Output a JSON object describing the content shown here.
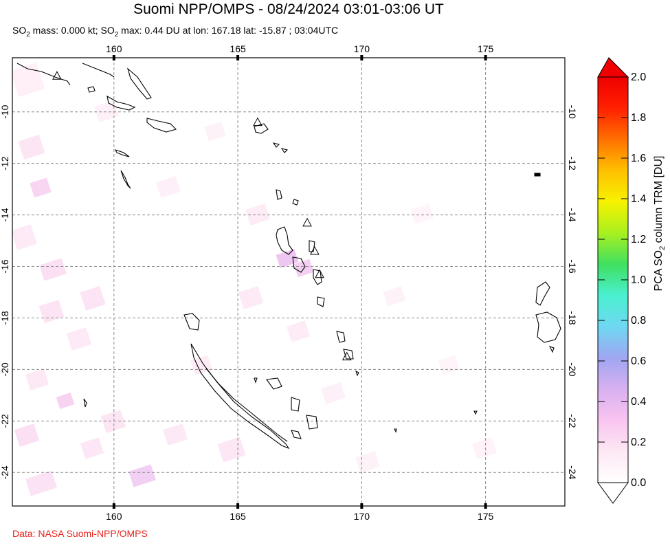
{
  "title": "Suomi NPP/OMPS - 08/24/2024 03:01-03:06 UT",
  "subtitle": {
    "mass_prefix": "SO",
    "mass_sub": "2",
    "mass_text": " mass: 0.000 kt; SO",
    "max_sub": "2",
    "max_text": " max: 0.44 DU at lon: 167.18 lat: -15.87 ; 03:04UTC"
  },
  "credit": "Data: NASA Suomi-NPP/OMPS",
  "map": {
    "lon_ticks": [
      "160",
      "165",
      "170",
      "175"
    ],
    "lat_ticks": [
      "-10",
      "-12",
      "-14",
      "-16",
      "-18",
      "-20",
      "-22",
      "-24"
    ],
    "lon_values": [
      160,
      165,
      170,
      175
    ],
    "lat_values": [
      -10,
      -12,
      -14,
      -16,
      -18,
      -20,
      -22,
      -24
    ],
    "lon_range": [
      155.9,
      178.2
    ],
    "lat_range": [
      -25.3,
      -7.9
    ],
    "volcano_icon": "triangle-icon",
    "volcanoes": [
      {
        "lon": 157.7,
        "lat": -8.6
      },
      {
        "lon": 165.8,
        "lat": -10.4
      },
      {
        "lon": 167.8,
        "lat": -14.3
      },
      {
        "lon": 168.1,
        "lat": -15.4
      },
      {
        "lon": 168.3,
        "lat": -16.3
      },
      {
        "lon": 169.4,
        "lat": -19.5
      }
    ],
    "max_point": {
      "lon": 167.18,
      "lat": -15.87
    }
  },
  "colorbar": {
    "label_prefix": "PCA SO",
    "label_sub": "2",
    "label_suffix": " column TRM [DU]",
    "ticks": [
      "0.0",
      "0.2",
      "0.4",
      "0.6",
      "0.8",
      "1.0",
      "1.2",
      "1.4",
      "1.6",
      "1.8",
      "2.0"
    ],
    "min": 0.0,
    "max": 2.0,
    "colors": [
      "#ffffff",
      "#fde8f4",
      "#f9c4f0",
      "#d8b0f0",
      "#9fa6f2",
      "#6fd8f2",
      "#4af0d0",
      "#3fe060",
      "#a8f020",
      "#f7f200",
      "#ffc000",
      "#ff7000",
      "#ff2000",
      "#f00000"
    ]
  }
}
